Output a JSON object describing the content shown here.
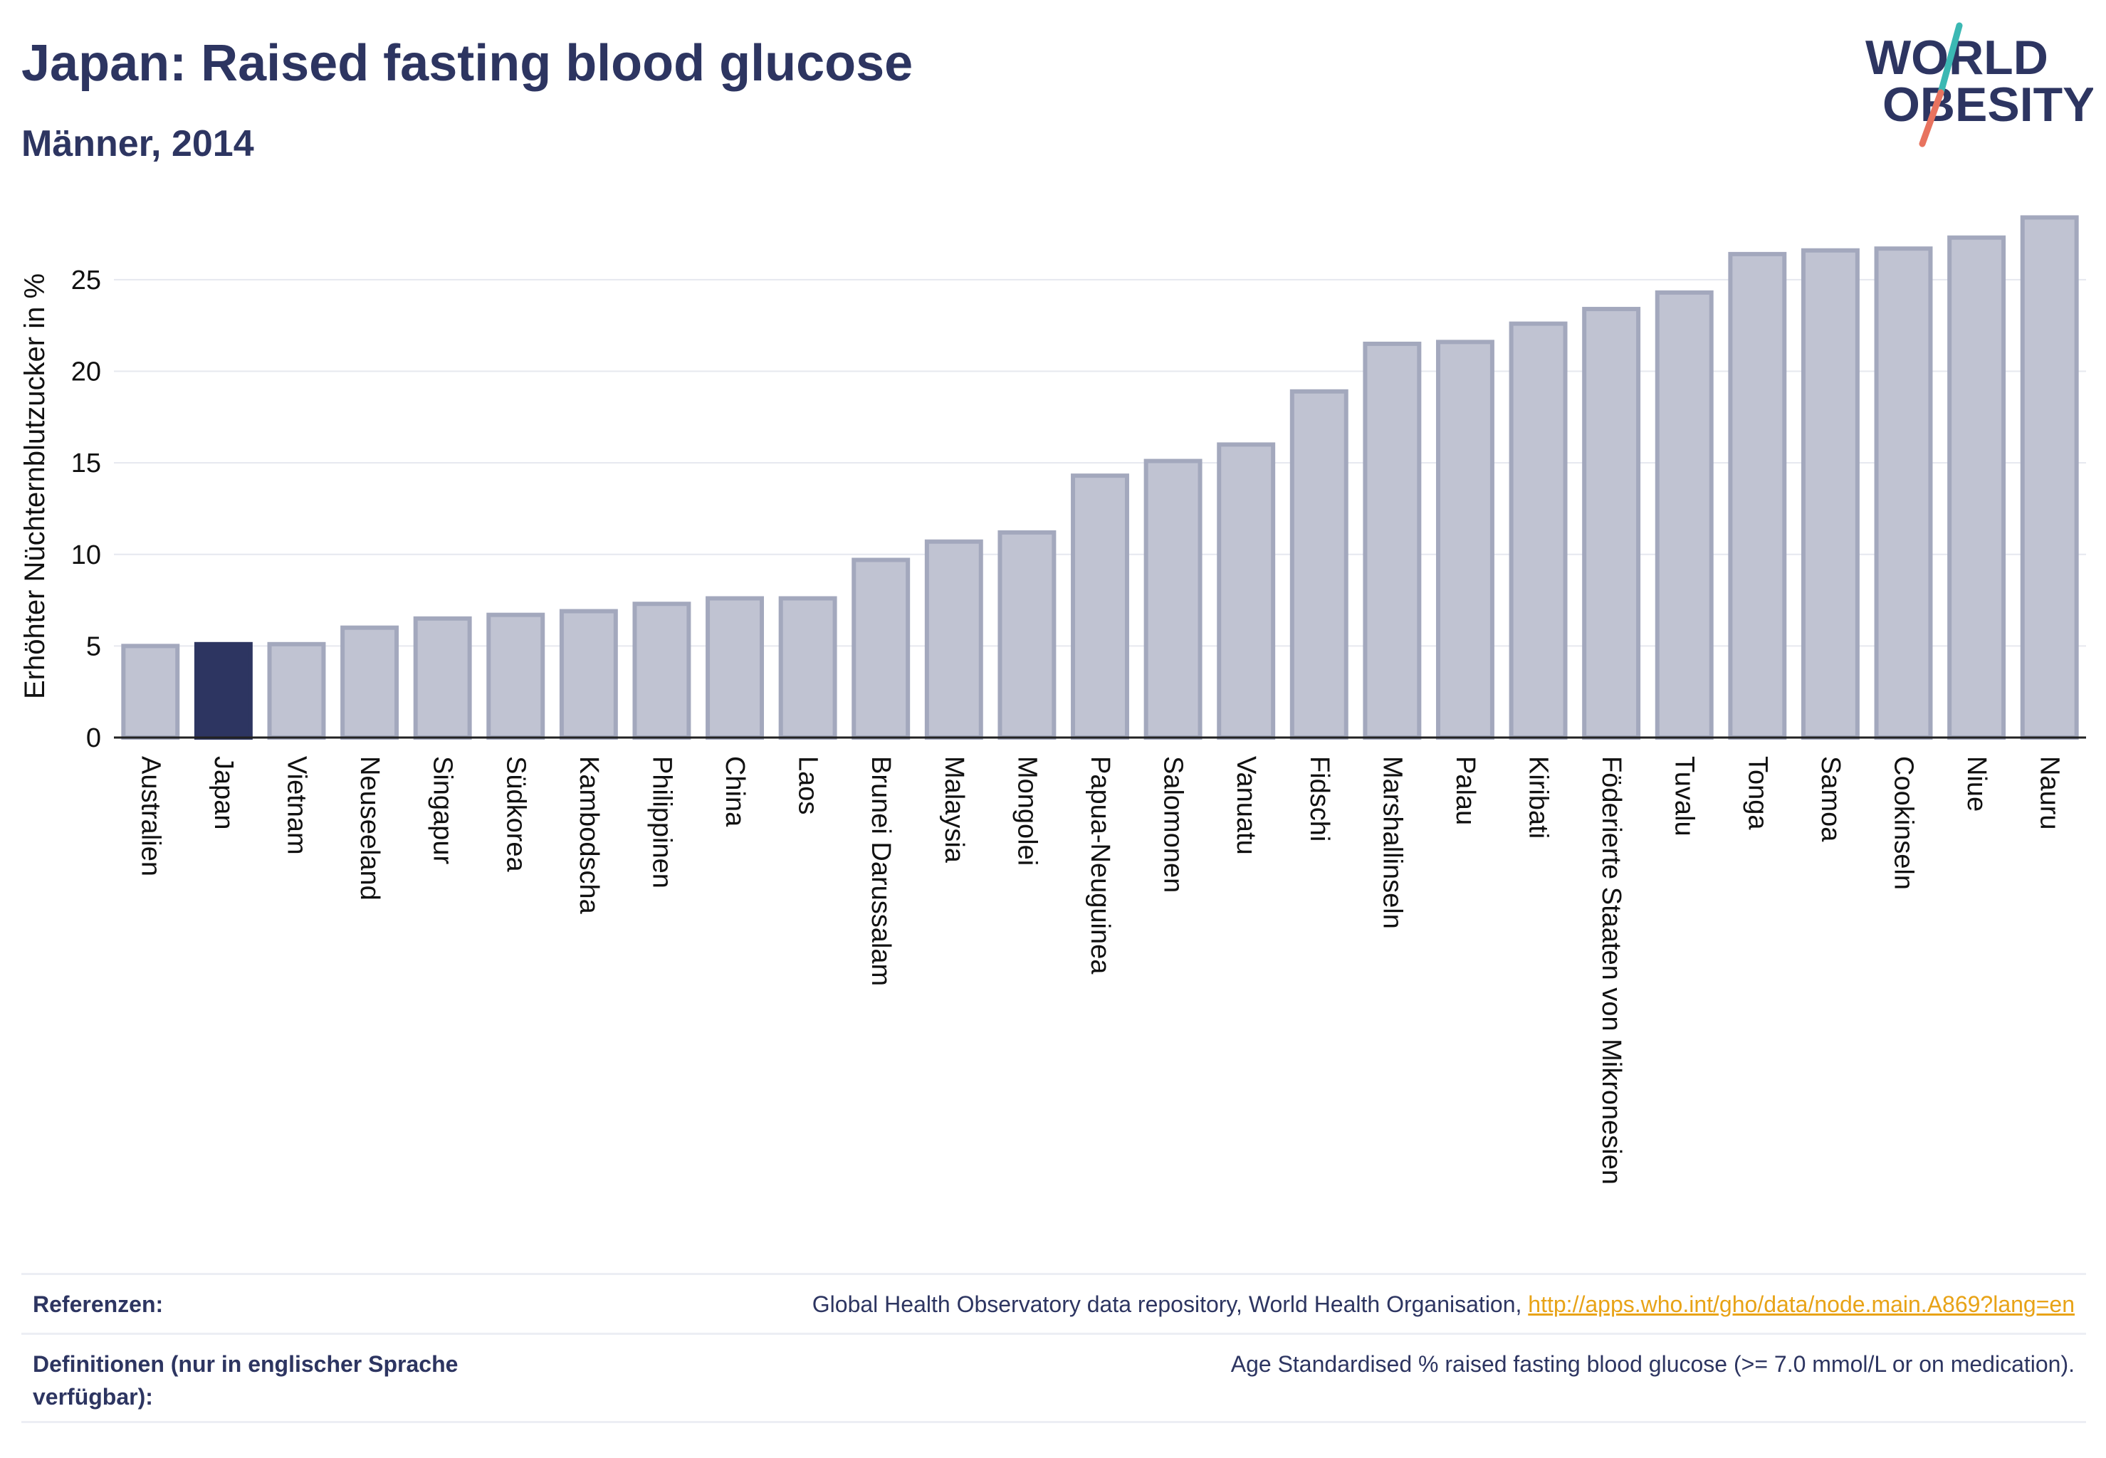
{
  "header": {
    "title": "Japan: Raised fasting blood glucose",
    "subtitle": "Männer, 2014"
  },
  "logo": {
    "line1": "WORLD",
    "line2": "OBESITY",
    "colors": {
      "text": "#2d3561",
      "slash_teal": "#3bb8b3",
      "slash_coral": "#e8735f"
    }
  },
  "chart_data": {
    "type": "bar",
    "title": "Japan: Raised fasting blood glucose",
    "subtitle": "Männer, 2014",
    "xlabel": "",
    "ylabel": "Erhöhter Nüchternblutzucker in %",
    "ylim": [
      0,
      29
    ],
    "yticks": [
      0,
      5,
      10,
      15,
      20,
      25
    ],
    "grid": true,
    "highlight": "Japan",
    "colors": {
      "bar": "#c0c3d2",
      "bar_border": "#a3a8bd",
      "highlight": "#2d3561",
      "grid": "#e6e8ef",
      "axis": "#222222"
    },
    "categories": [
      "Australien",
      "Japan",
      "Vietnam",
      "Neuseeland",
      "Singapur",
      "Südkorea",
      "Kambodscha",
      "Philippinen",
      "China",
      "Laos",
      "Brunei Darussalam",
      "Malaysia",
      "Mongolei",
      "Papua-Neuguinea",
      "Salomonen",
      "Vanuatu",
      "Fidschi",
      "Marshallinseln",
      "Palau",
      "Kiribati",
      "Föderierte Staaten von Mikronesien",
      "Tuvalu",
      "Tonga",
      "Samoa",
      "Cookinseln",
      "Niue",
      "Nauru"
    ],
    "values": [
      5.0,
      5.1,
      5.1,
      6.0,
      6.5,
      6.7,
      6.9,
      7.3,
      7.6,
      7.6,
      9.7,
      10.7,
      11.2,
      14.3,
      15.1,
      16.0,
      18.9,
      21.5,
      21.6,
      22.6,
      23.4,
      24.3,
      26.4,
      26.6,
      26.7,
      27.3,
      28.4
    ]
  },
  "references": {
    "ref_label": "Referenzen:",
    "ref_text": "Global Health Observatory data repository, World Health Organisation, ",
    "ref_link": "http://apps.who.int/gho/data/node.main.A869?lang=en",
    "def_label": "Definitionen (nur in englischer Sprache verfügbar):",
    "def_text": "Age Standardised % raised fasting blood glucose (>= 7.0 mmol/L or on medication)."
  }
}
